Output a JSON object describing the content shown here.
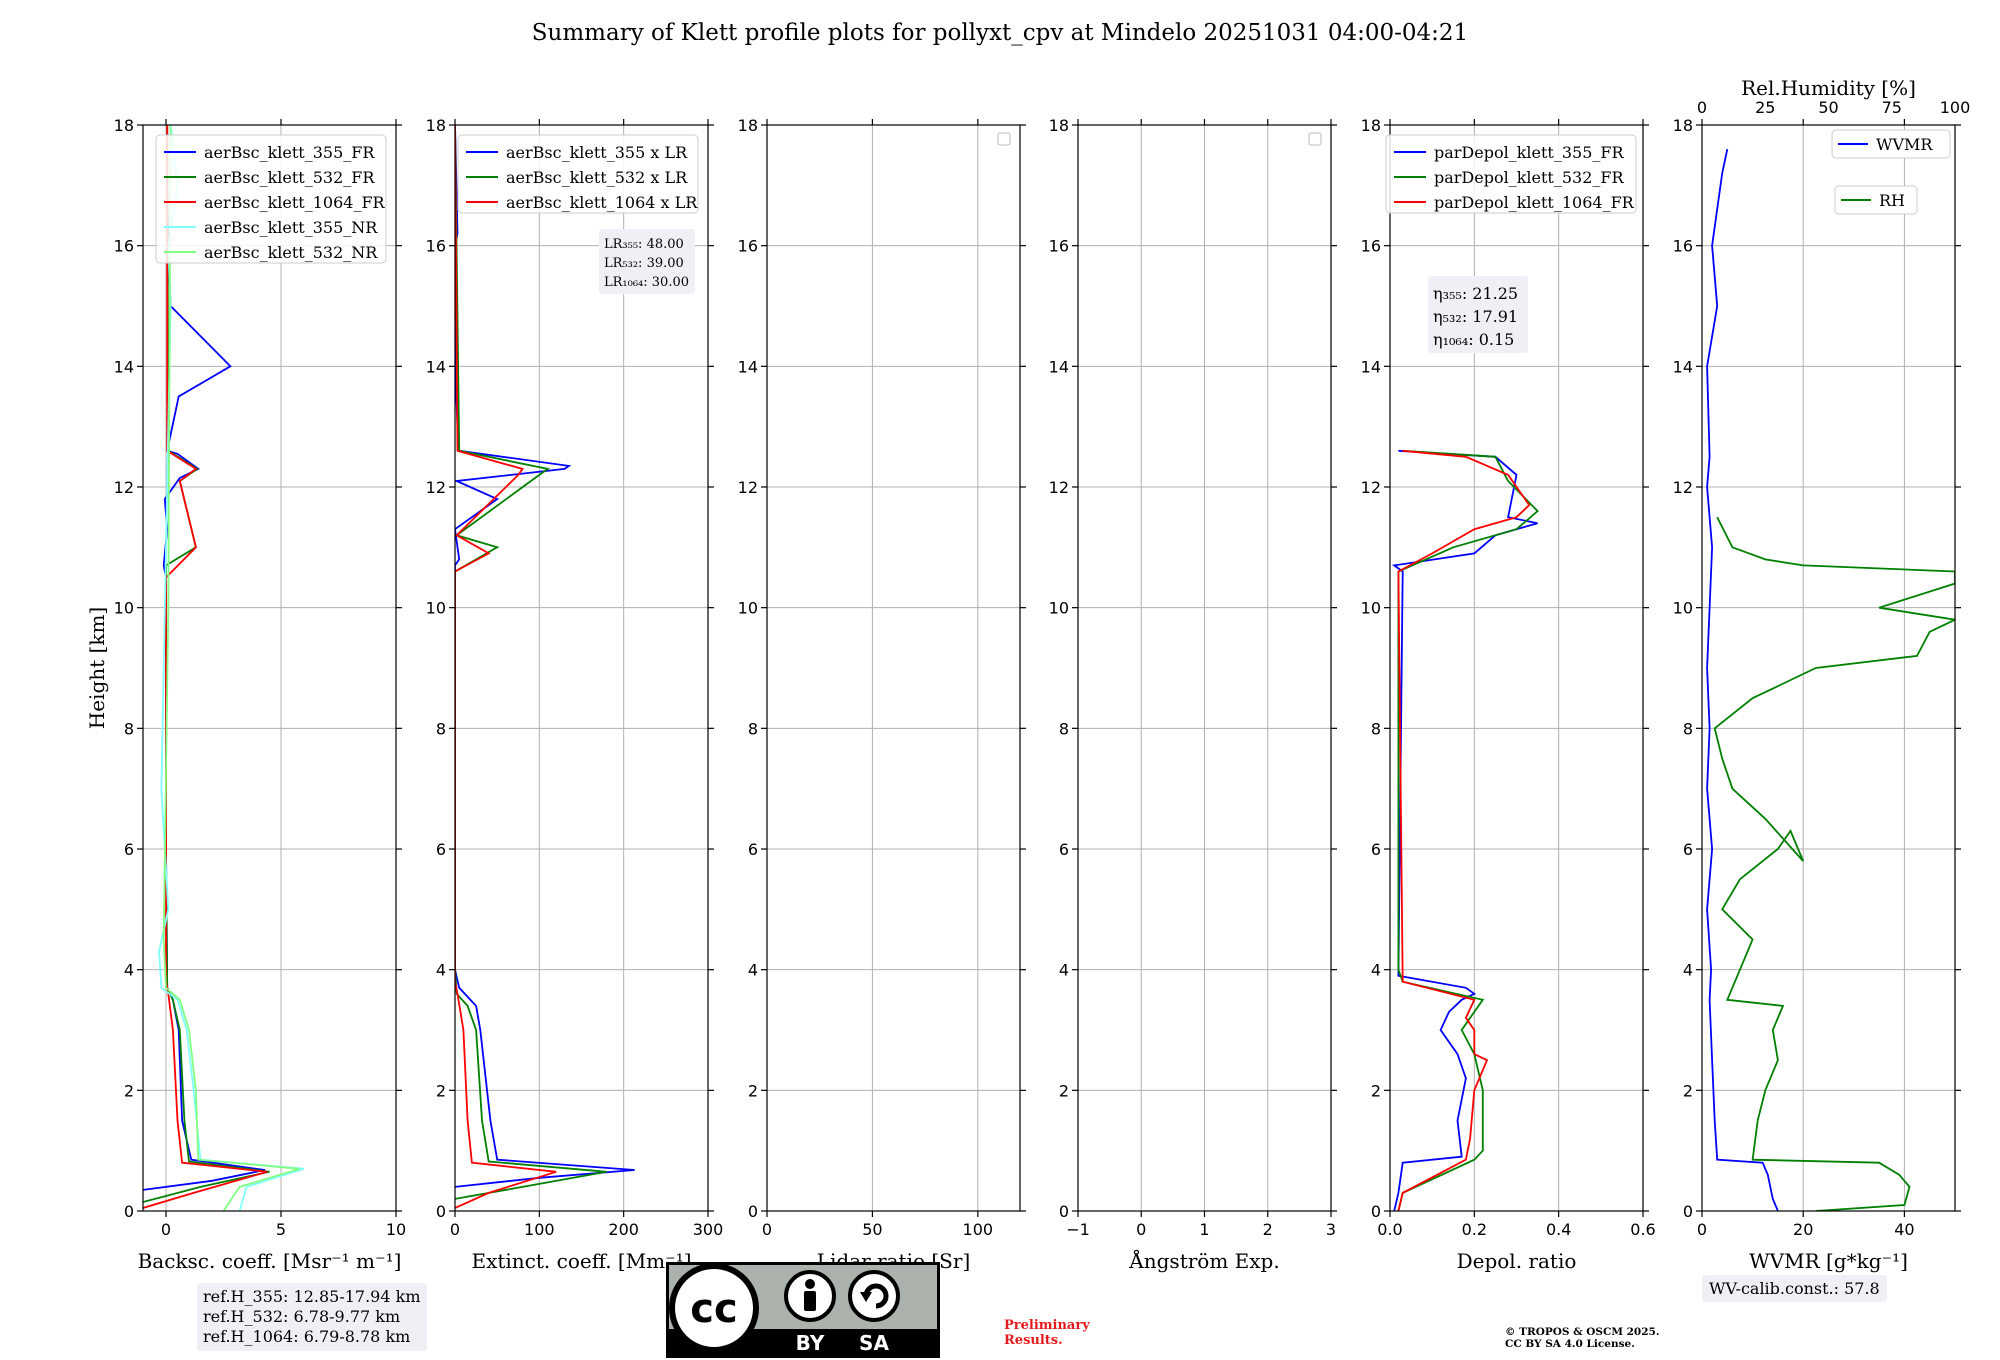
{
  "title": "Summary of Klett profile plots for pollyxt_cpv at Mindelo 20251031 04:00-04:21",
  "colors": {
    "b355": "#0000ff",
    "b532": "#008000",
    "b1064": "#ff0000",
    "nr355": "#80ffff",
    "nr532": "#80ff80",
    "wvmr": "#0000ff",
    "rh": "#008000"
  },
  "y_axis": {
    "label": "Height [km]",
    "ylim": [
      0,
      18
    ],
    "ticks": [
      "0",
      "2",
      "4",
      "6",
      "8",
      "10",
      "12",
      "14",
      "16",
      "18"
    ]
  },
  "chart_data": [
    {
      "id": "bsc",
      "type": "line",
      "xlabel": "Backsc. coeff. [Msr⁻¹ m⁻¹]",
      "xlim": [
        -1,
        10
      ],
      "xticks": [
        0,
        5,
        10
      ],
      "xtick_labels": [
        "0",
        "5",
        "10"
      ],
      "legend": [
        "aerBsc_klett_355_FR",
        "aerBsc_klett_532_FR",
        "aerBsc_klett_1064_FR",
        "aerBsc_klett_355_NR",
        "aerBsc_klett_532_NR"
      ],
      "series": [
        {
          "name": "aerBsc_klett_355_FR",
          "color": "b355",
          "x": [
            -1,
            2,
            4.3,
            1.1,
            0.7,
            0.55,
            0.3,
            0.05,
            0,
            0,
            -0.1,
            0.05,
            -0.05,
            0.6,
            1.4,
            0.5,
            0.05,
            0.55,
            2.8,
            0.2,
            0.1,
            0.05,
            0.05
          ],
          "y": [
            0.35,
            0.5,
            0.68,
            0.85,
            1.5,
            3.0,
            3.5,
            3.7,
            6,
            10.5,
            10.7,
            11.3,
            11.8,
            12.15,
            12.3,
            12.55,
            12.6,
            13.5,
            14,
            15,
            16,
            17,
            18
          ]
        },
        {
          "name": "aerBsc_klett_532_FR",
          "color": "b532",
          "x": [
            -1,
            1.5,
            4.5,
            1.0,
            0.8,
            0.6,
            0.3,
            0.05,
            0,
            0,
            0,
            1.3,
            0.6,
            1.35,
            0.1,
            0.05
          ],
          "y": [
            0.15,
            0.4,
            0.65,
            0.82,
            1.5,
            3.0,
            3.5,
            3.7,
            6,
            10.5,
            10.7,
            11.0,
            12.1,
            12.3,
            12.6,
            18
          ]
        },
        {
          "name": "aerBsc_klett_1064_FR",
          "color": "b1064",
          "x": [
            -1,
            1.2,
            4.4,
            0.7,
            0.5,
            0.3,
            0.1,
            0,
            0,
            1.3,
            0.6,
            1.3,
            0.05,
            0.05
          ],
          "y": [
            0.05,
            0.3,
            0.65,
            0.8,
            1.5,
            3.0,
            3.6,
            3.8,
            10.5,
            11.0,
            12.1,
            12.3,
            12.6,
            18
          ]
        },
        {
          "name": "aerBsc_klett_355_NR",
          "color": "nr355",
          "x": [
            3.2,
            3.5,
            6.0,
            1.5,
            1.2,
            0.9,
            0.5,
            -0.2,
            -0.3,
            0.1,
            -0.2,
            0.2,
            0.1,
            0.5,
            0.2
          ],
          "y": [
            0.0,
            0.4,
            0.7,
            0.85,
            2.0,
            3.0,
            3.5,
            3.7,
            4.3,
            5.0,
            7.0,
            15.0,
            16.0,
            17.0,
            18.0
          ]
        },
        {
          "name": "aerBsc_klett_532_NR",
          "color": "nr532",
          "x": [
            2.5,
            3.2,
            5.8,
            1.4,
            1.3,
            1.0,
            0.6,
            0.0,
            -0.1,
            0.1,
            0.2
          ],
          "y": [
            0.0,
            0.4,
            0.7,
            0.85,
            2.0,
            3.0,
            3.5,
            3.7,
            4.5,
            10.0,
            18.0
          ]
        }
      ]
    },
    {
      "id": "ext",
      "type": "line",
      "xlabel": "Extinct. coeff. [Mm⁻¹]",
      "xlim": [
        0,
        300
      ],
      "xticks": [
        0,
        100,
        200,
        300
      ],
      "xtick_labels": [
        "0",
        "100",
        "200",
        "300"
      ],
      "legend": [
        "aerBsc_klett_355 x LR",
        "aerBsc_klett_532 x LR",
        "aerBsc_klett_1064 x LR"
      ],
      "annotation": [
        "LR₃₅₅: 48.00",
        "LR₅₃₂: 39.00",
        "LR₁₀₆₄: 30.00"
      ],
      "series": [
        {
          "name": "aerBsc_klett_355 x LR",
          "color": "b355",
          "x": [
            0,
            100,
            213,
            50,
            42,
            30,
            25,
            5,
            0,
            0,
            0,
            5,
            0,
            50,
            2,
            130,
            135,
            5,
            3,
            0,
            2,
            0,
            3,
            0
          ],
          "y": [
            0.4,
            0.55,
            0.68,
            0.85,
            1.5,
            3.0,
            3.4,
            3.7,
            4.0,
            10.6,
            10.7,
            10.8,
            11.3,
            11.8,
            12.1,
            12.3,
            12.35,
            12.6,
            13.0,
            14.0,
            15.0,
            16.0,
            16.2,
            18.0
          ]
        },
        {
          "name": "aerBsc_klett_532 x LR",
          "color": "b532",
          "x": [
            0,
            80,
            180,
            40,
            32,
            25,
            15,
            2,
            0,
            0,
            50,
            2,
            100,
            110,
            5,
            0
          ],
          "y": [
            0.2,
            0.4,
            0.65,
            0.82,
            1.5,
            3.0,
            3.4,
            3.6,
            4.0,
            10.6,
            11.0,
            11.2,
            12.2,
            12.3,
            12.6,
            18.0
          ]
        },
        {
          "name": "aerBsc_klett_1064 x LR",
          "color": "b1064",
          "x": [
            0,
            40,
            120,
            20,
            15,
            10,
            3,
            0,
            0,
            40,
            2,
            75,
            80,
            3,
            0
          ],
          "y": [
            0.05,
            0.3,
            0.65,
            0.8,
            1.5,
            3.0,
            3.6,
            3.8,
            10.6,
            10.9,
            11.2,
            12.2,
            12.3,
            12.6,
            18.0
          ]
        }
      ]
    },
    {
      "id": "lr",
      "type": "line",
      "xlabel": "Lidar ratio [Sr]",
      "xlim": [
        0,
        120
      ],
      "xticks": [
        0,
        50,
        100
      ],
      "xtick_labels": [
        "0",
        "50",
        "100"
      ],
      "series": []
    },
    {
      "id": "ang",
      "type": "line",
      "xlabel": "Ångström Exp.",
      "xlim": [
        -1,
        3
      ],
      "xticks": [
        -1,
        0,
        1,
        2,
        3
      ],
      "xtick_labels": [
        "−1",
        "0",
        "1",
        "2",
        "3"
      ],
      "series": []
    },
    {
      "id": "dep",
      "type": "line",
      "xlabel": "Depol. ratio",
      "xlim": [
        0,
        0.6
      ],
      "xticks": [
        0,
        0.2,
        0.4,
        0.6
      ],
      "xtick_labels": [
        "0.0",
        "0.2",
        "0.4",
        "0.6"
      ],
      "legend": [
        "parDepol_klett_355_FR",
        "parDepol_klett_532_FR",
        "parDepol_klett_1064_FR"
      ],
      "annotation": [
        "η₃₅₅: 21.25",
        "η₅₃₂: 17.91",
        "η₁₀₆₄: 0.15"
      ],
      "series": [
        {
          "name": "parDepol_klett_355_FR",
          "color": "b355",
          "x": [
            0.01,
            0.02,
            0.03,
            0.17,
            0.16,
            0.18,
            0.16,
            0.12,
            0.14,
            0.17,
            0.2,
            0.18,
            0.02,
            0.03,
            0.01,
            0.2,
            0.25,
            0.35,
            0.28,
            0.3,
            0.25,
            0.02
          ],
          "y": [
            0.0,
            0.3,
            0.8,
            0.9,
            1.5,
            2.2,
            2.6,
            3.0,
            3.3,
            3.5,
            3.6,
            3.7,
            3.9,
            10.6,
            10.7,
            10.9,
            11.2,
            11.4,
            11.5,
            12.2,
            12.5,
            12.6
          ]
        },
        {
          "name": "parDepol_klett_532_FR",
          "color": "b532",
          "x": [
            0.02,
            0.03,
            0.2,
            0.22,
            0.22,
            0.2,
            0.17,
            0.2,
            0.22,
            0.03,
            0.02,
            0.02,
            0.15,
            0.3,
            0.35,
            0.28,
            0.25,
            0.03
          ],
          "y": [
            0.0,
            0.3,
            0.85,
            1.0,
            2.0,
            2.6,
            3.0,
            3.3,
            3.5,
            3.8,
            4.0,
            10.6,
            11.0,
            11.3,
            11.6,
            12.1,
            12.5,
            12.6
          ]
        },
        {
          "name": "parDepol_klett_1064_FR",
          "color": "b1064",
          "x": [
            0.02,
            0.03,
            0.18,
            0.19,
            0.2,
            0.23,
            0.2,
            0.2,
            0.18,
            0.2,
            0.03,
            0.02,
            0.1,
            0.2,
            0.3,
            0.33,
            0.28,
            0.18,
            0.03
          ],
          "y": [
            0.0,
            0.3,
            0.85,
            1.2,
            2.0,
            2.5,
            2.6,
            3.0,
            3.2,
            3.5,
            3.8,
            10.6,
            10.9,
            11.3,
            11.5,
            11.7,
            12.2,
            12.5,
            12.6
          ]
        }
      ]
    },
    {
      "id": "wv",
      "type": "line",
      "xlabel": "WVMR [g*kg⁻¹]",
      "xlim": [
        0,
        50
      ],
      "xticks": [
        0,
        20,
        40
      ],
      "xtick_labels": [
        "0",
        "20",
        "40"
      ],
      "top_axis": {
        "label": "Rel.Humidity [%]",
        "xlim": [
          0,
          100
        ],
        "xticks": [
          0,
          25,
          50,
          75,
          100
        ],
        "xtick_labels": [
          "0",
          "25",
          "50",
          "75",
          "100"
        ]
      },
      "legend": [
        "WVMR",
        "RH"
      ],
      "series": [
        {
          "name": "WVMR",
          "color": "wvmr",
          "axis": "bottom",
          "x": [
            15,
            14,
            13,
            12,
            3,
            2.5,
            2,
            1.5,
            1.8,
            1,
            2,
            1,
            1.5,
            1,
            1.5,
            2,
            1,
            1.5,
            1,
            3,
            2,
            4,
            5
          ],
          "y": [
            0.0,
            0.2,
            0.6,
            0.8,
            0.85,
            1.5,
            2.5,
            3.5,
            4.0,
            5.0,
            6.0,
            7.0,
            8.0,
            9.0,
            10.0,
            11.0,
            12.0,
            12.5,
            14.0,
            15.0,
            16.0,
            17.2,
            17.6
          ]
        },
        {
          "name": "RH",
          "color": "rh",
          "axis": "top",
          "x": [
            45,
            80,
            82,
            78,
            70,
            20,
            22,
            25,
            30,
            28,
            32,
            10,
            20,
            8,
            15,
            30,
            35,
            40,
            25,
            12,
            8,
            5,
            20,
            45,
            85,
            90,
            100,
            70,
            100,
            100,
            40,
            25,
            12,
            6
          ],
          "y": [
            0.0,
            0.1,
            0.4,
            0.6,
            0.8,
            0.85,
            1.5,
            2.0,
            2.5,
            3.0,
            3.4,
            3.5,
            4.5,
            5.0,
            5.5,
            6.0,
            6.3,
            5.8,
            6.5,
            7.0,
            7.5,
            8.0,
            8.5,
            9.0,
            9.2,
            9.6,
            9.8,
            10.0,
            10.4,
            10.6,
            10.7,
            10.8,
            11.0,
            11.5
          ]
        }
      ]
    }
  ],
  "refbox": [
    "ref.H_355: 12.85-17.94 km",
    "ref.H_532: 6.78-9.77 km",
    "ref.H_1064: 6.79-8.78 km"
  ],
  "wv_calib": "WV-calib.const.: 57.8",
  "license": {
    "main": "cc",
    "by": "BY",
    "sa": "SA"
  },
  "preliminary": [
    "Preliminary",
    "Results."
  ],
  "copyright": [
    "© TROPOS & OSCM 2025.",
    "CC BY SA 4.0 License."
  ]
}
